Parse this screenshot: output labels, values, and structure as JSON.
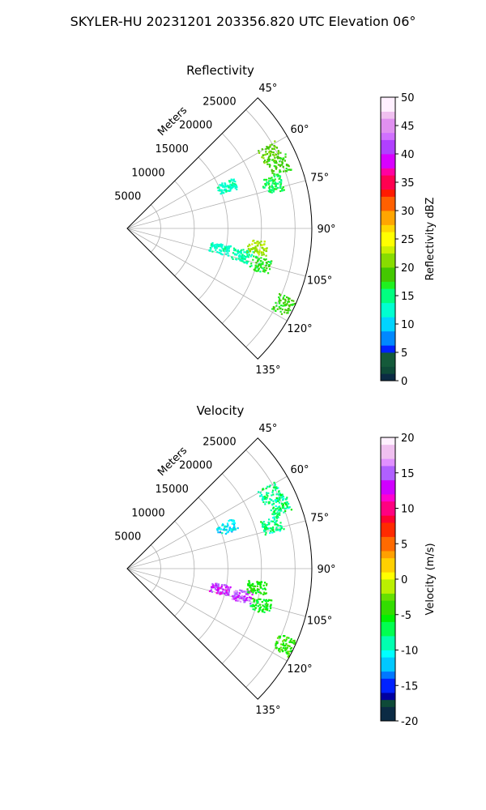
{
  "figure": {
    "suptitle": "SKYLER-HU  20231201  203356.820 UTC Elevation 06°"
  },
  "chart_data": [
    {
      "type": "heatmap",
      "subtype": "polar-sector-ppi",
      "title": "Reflectivity",
      "radial_label": "Meters",
      "radial_ticks": [
        5000,
        10000,
        15000,
        20000,
        25000
      ],
      "radial_range_m": [
        0,
        27500
      ],
      "azimuth_range_deg": [
        45,
        135
      ],
      "azimuth_ticks": [
        "45°",
        "60°",
        "75°",
        "90°",
        "105°",
        "120°",
        "135°"
      ],
      "azimuth_tick_values": [
        45,
        60,
        75,
        90,
        105,
        120,
        135
      ],
      "grid": true,
      "colorbar": {
        "label": "Reflectivity dBZ",
        "min": 0,
        "max": 50,
        "ticks": [
          0,
          5,
          10,
          15,
          20,
          25,
          30,
          35,
          40,
          45,
          50
        ]
      },
      "echo_regions": [
        {
          "az_deg": 62,
          "range_m": 24000,
          "value": 20
        },
        {
          "az_deg": 67,
          "range_m": 24500,
          "value": 18
        },
        {
          "az_deg": 73,
          "range_m": 22500,
          "value": 16
        },
        {
          "az_deg": 67,
          "range_m": 16000,
          "value": 13
        },
        {
          "az_deg": 102,
          "range_m": 14000,
          "value": 13
        },
        {
          "az_deg": 103,
          "range_m": 17500,
          "value": 14
        },
        {
          "az_deg": 98,
          "range_m": 19500,
          "value": 22
        },
        {
          "az_deg": 105,
          "range_m": 20500,
          "value": 17
        },
        {
          "az_deg": 116,
          "range_m": 26000,
          "value": 18
        }
      ]
    },
    {
      "type": "heatmap",
      "subtype": "polar-sector-ppi",
      "title": "Velocity",
      "radial_label": "Meters",
      "radial_ticks": [
        5000,
        10000,
        15000,
        20000,
        25000
      ],
      "radial_range_m": [
        0,
        27500
      ],
      "azimuth_range_deg": [
        45,
        135
      ],
      "azimuth_ticks": [
        "45°",
        "60°",
        "75°",
        "90°",
        "105°",
        "120°",
        "135°"
      ],
      "azimuth_tick_values": [
        45,
        60,
        75,
        90,
        105,
        120,
        135
      ],
      "grid": true,
      "colorbar": {
        "label": "Velocity (m/s)",
        "min": -20,
        "max": 20,
        "ticks": [
          -20,
          -15,
          -10,
          -5,
          0,
          5,
          10,
          15,
          20
        ]
      },
      "echo_regions": [
        {
          "az_deg": 62,
          "range_m": 24000,
          "value": -8
        },
        {
          "az_deg": 67,
          "range_m": 24500,
          "value": -8
        },
        {
          "az_deg": 73,
          "range_m": 22500,
          "value": -8
        },
        {
          "az_deg": 67,
          "range_m": 16000,
          "value": -11
        },
        {
          "az_deg": 102,
          "range_m": 14000,
          "value": 14
        },
        {
          "az_deg": 103,
          "range_m": 17500,
          "value": 15
        },
        {
          "az_deg": 98,
          "range_m": 19500,
          "value": -5
        },
        {
          "az_deg": 105,
          "range_m": 20500,
          "value": -6
        },
        {
          "az_deg": 116,
          "range_m": 26000,
          "value": -4
        }
      ]
    }
  ]
}
